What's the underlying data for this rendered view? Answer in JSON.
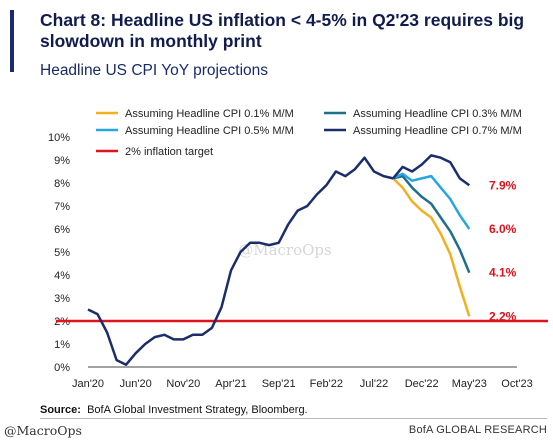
{
  "header": {
    "title": "Chart 8: Headline US inflation < 4-5% in Q2'23 requires big slowdown in monthly print",
    "subtitle": "Headline US CPI YoY projections"
  },
  "footer": {
    "source_label": "Source:",
    "source_text": "BofA Global Investment Strategy, Bloomberg.",
    "handle": "@MacroOps",
    "brand": "BofA GLOBAL RESEARCH"
  },
  "watermark": "@MacroOps",
  "colors": {
    "navy": "#1b2d6b",
    "teal": "#1f6f8b",
    "lightblue": "#26a7df",
    "gold": "#f2b01e",
    "red": "#e0121b",
    "axis_text": "#222222"
  },
  "chart_data": {
    "type": "line",
    "x_tick_labels": [
      "Jan'20",
      "Jun'20",
      "Nov'20",
      "Apr'21",
      "Sep'21",
      "Feb'22",
      "Jul'22",
      "Dec'22",
      "May'23",
      "Oct'23"
    ],
    "y_tick_labels": [
      "0%",
      "1%",
      "2%",
      "3%",
      "4%",
      "5%",
      "6%",
      "7%",
      "8%",
      "9%",
      "10%"
    ],
    "ylim": [
      0,
      10
    ],
    "x_month_range": [
      0,
      45
    ],
    "grid": false,
    "legend_position": "top",
    "history": {
      "name": "Assuming Headline CPI 0.7% M/M",
      "months": [
        0,
        1,
        2,
        3,
        4,
        5,
        6,
        7,
        8,
        9,
        10,
        11,
        12,
        13,
        14,
        15,
        16,
        17,
        18,
        19,
        20,
        21,
        22,
        23,
        24,
        25,
        26,
        27,
        28,
        29,
        30,
        31,
        32
      ],
      "values": [
        2.5,
        2.3,
        1.5,
        0.3,
        0.1,
        0.6,
        1.0,
        1.3,
        1.4,
        1.2,
        1.2,
        1.4,
        1.4,
        1.7,
        2.6,
        4.2,
        5.0,
        5.4,
        5.4,
        5.3,
        5.4,
        6.2,
        6.8,
        7.0,
        7.5,
        7.9,
        8.5,
        8.3,
        8.6,
        9.1,
        8.5,
        8.3,
        8.2
      ]
    },
    "series": [
      {
        "name": "Assuming Headline CPI 0.1% M/M",
        "color_key": "gold",
        "months": [
          32,
          33,
          34,
          35,
          36,
          37,
          38,
          39,
          40
        ],
        "values": [
          8.2,
          7.8,
          7.2,
          6.8,
          6.5,
          5.8,
          4.9,
          3.5,
          2.2
        ],
        "end_label": "2.2%"
      },
      {
        "name": "Assuming Headline CPI 0.3% M/M",
        "color_key": "teal",
        "months": [
          32,
          33,
          34,
          35,
          36,
          37,
          38,
          39,
          40
        ],
        "values": [
          8.2,
          8.3,
          7.8,
          7.4,
          7.1,
          6.5,
          5.9,
          5.1,
          4.1
        ],
        "end_label": "4.1%"
      },
      {
        "name": "Assuming Headline CPI 0.5% M/M",
        "color_key": "lightblue",
        "months": [
          32,
          33,
          34,
          35,
          36,
          37,
          38,
          39,
          40
        ],
        "values": [
          8.2,
          8.4,
          8.1,
          8.2,
          8.3,
          7.8,
          7.3,
          6.6,
          6.0
        ],
        "end_label": "6.0%"
      },
      {
        "name": "Assuming Headline CPI 0.7% M/M",
        "color_key": "navy",
        "months": [
          32,
          33,
          34,
          35,
          36,
          37,
          38,
          39,
          40
        ],
        "values": [
          8.2,
          8.7,
          8.5,
          8.8,
          9.2,
          9.1,
          8.9,
          8.2,
          7.9
        ],
        "end_label": "7.9%"
      }
    ],
    "target": {
      "name": "2% inflation target",
      "value": 2.0,
      "color_key": "red"
    },
    "legend": [
      {
        "label": "Assuming Headline CPI 0.1% M/M",
        "color_key": "gold"
      },
      {
        "label": "Assuming Headline CPI 0.3% M/M",
        "color_key": "teal"
      },
      {
        "label": "Assuming Headline CPI 0.5% M/M",
        "color_key": "lightblue"
      },
      {
        "label": "Assuming Headline CPI 0.7% M/M",
        "color_key": "navy"
      },
      {
        "label": "2% inflation target",
        "color_key": "red"
      }
    ]
  }
}
